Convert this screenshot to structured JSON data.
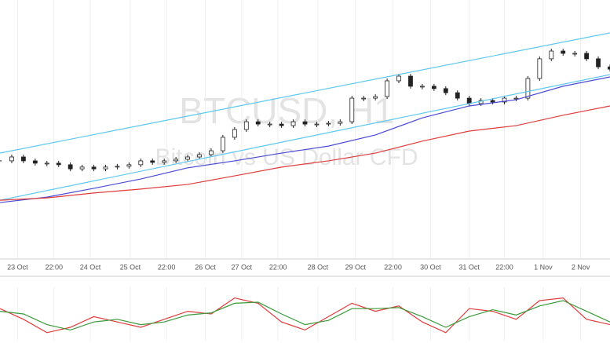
{
  "chart_data": [
    {
      "type": "candlestick",
      "title": "BTCUSD, H1",
      "subtitle": "Bitcoin vs US Dollar CFD",
      "xlim": [
        0,
        52
      ],
      "ylim": [
        0,
        100
      ],
      "grid": true,
      "xticks": [
        {
          "value": 1.5,
          "label": "23 Oct"
        },
        {
          "value": 4.6,
          "label": "22:00"
        },
        {
          "value": 7.7,
          "label": "24 Oct"
        },
        {
          "value": 11.1,
          "label": "25 Oct"
        },
        {
          "value": 14.2,
          "label": "22:00"
        },
        {
          "value": 17.5,
          "label": "26 Oct"
        },
        {
          "value": 20.6,
          "label": "27 Oct"
        },
        {
          "value": 23.7,
          "label": "22:00"
        },
        {
          "value": 27.1,
          "label": "28 Oct"
        },
        {
          "value": 30.3,
          "label": "29 Oct"
        },
        {
          "value": 33.5,
          "label": "22:00"
        },
        {
          "value": 36.7,
          "label": "30 Oct"
        },
        {
          "value": 40.0,
          "label": "31 Oct"
        },
        {
          "value": 43.0,
          "label": "22:00"
        },
        {
          "value": 46.3,
          "label": "1 Nov"
        },
        {
          "value": 49.5,
          "label": "2 Nov"
        }
      ],
      "series": [
        {
          "type": "candlestick",
          "color": "#222222",
          "values": [
            37.9,
            39.4,
            37.9,
            37.0,
            37.0,
            36.4,
            34.8,
            35.5,
            34.8,
            35.5,
            35.8,
            36.4,
            37.9,
            37.3,
            37.9,
            38.5,
            39.4,
            40.3,
            41.8,
            47.0,
            50.0,
            53.0,
            52.1,
            52.1,
            51.5,
            53.0,
            52.1,
            52.1,
            52.4,
            53.0,
            62.1,
            62.1,
            62.7,
            68.8,
            70.6,
            66.7,
            66.7,
            65.8,
            64.2,
            62.1,
            60.0,
            61.2,
            60.6,
            62.1,
            62.1,
            69.7,
            77.3,
            80.3,
            79.4,
            79.4,
            77.3,
            74.2,
            73.3
          ]
        },
        {
          "type": "line",
          "color": "#5bc8f0",
          "x": [
            0,
            52
          ],
          "values": [
            40.9,
            87.3
          ]
        },
        {
          "type": "line",
          "color": "#5bc8f0",
          "x": [
            0,
            52
          ],
          "values": [
            22.7,
            71.2
          ]
        },
        {
          "type": "line",
          "color": "#4a4ad6",
          "x": [
            0,
            4,
            8,
            12,
            16,
            20,
            24,
            28,
            32,
            36,
            40,
            44,
            48,
            52
          ],
          "values": [
            21.8,
            23.9,
            27.3,
            30.9,
            35.2,
            37.9,
            40.9,
            43.6,
            47.9,
            54.5,
            59.1,
            61.5,
            66.7,
            70.3
          ]
        },
        {
          "type": "line",
          "color": "#e03c3c",
          "x": [
            0,
            4,
            8,
            12,
            16,
            20,
            24,
            28,
            32,
            36,
            40,
            44,
            48,
            52
          ],
          "values": [
            22.7,
            23.6,
            25.5,
            27.0,
            28.8,
            32.1,
            35.5,
            37.9,
            40.9,
            45.5,
            49.4,
            51.5,
            55.5,
            59.1
          ]
        }
      ]
    },
    {
      "type": "line",
      "xlim": [
        0,
        52
      ],
      "ylim": [
        0,
        100
      ],
      "series": [
        {
          "color": "#e03c3c",
          "x": [
            0,
            2,
            4,
            6,
            8,
            10,
            12,
            14,
            16,
            18,
            20,
            22,
            24,
            26,
            28,
            30,
            32,
            34,
            36,
            38,
            40,
            42,
            44,
            46,
            48,
            50,
            52
          ],
          "values": [
            60,
            40,
            15,
            25,
            45,
            35,
            25,
            40,
            55,
            50,
            80,
            70,
            35,
            20,
            45,
            70,
            55,
            65,
            35,
            15,
            60,
            55,
            40,
            75,
            80,
            40,
            30
          ]
        },
        {
          "color": "#3a9a3a",
          "x": [
            0,
            2,
            4,
            6,
            8,
            10,
            12,
            14,
            16,
            18,
            20,
            22,
            24,
            26,
            28,
            30,
            32,
            34,
            36,
            38,
            40,
            42,
            44,
            46,
            48,
            50,
            52
          ],
          "values": [
            55,
            50,
            30,
            20,
            35,
            40,
            30,
            35,
            48,
            52,
            70,
            72,
            50,
            30,
            38,
            60,
            60,
            62,
            45,
            25,
            45,
            58,
            48,
            65,
            75,
            55,
            35
          ]
        }
      ]
    }
  ]
}
